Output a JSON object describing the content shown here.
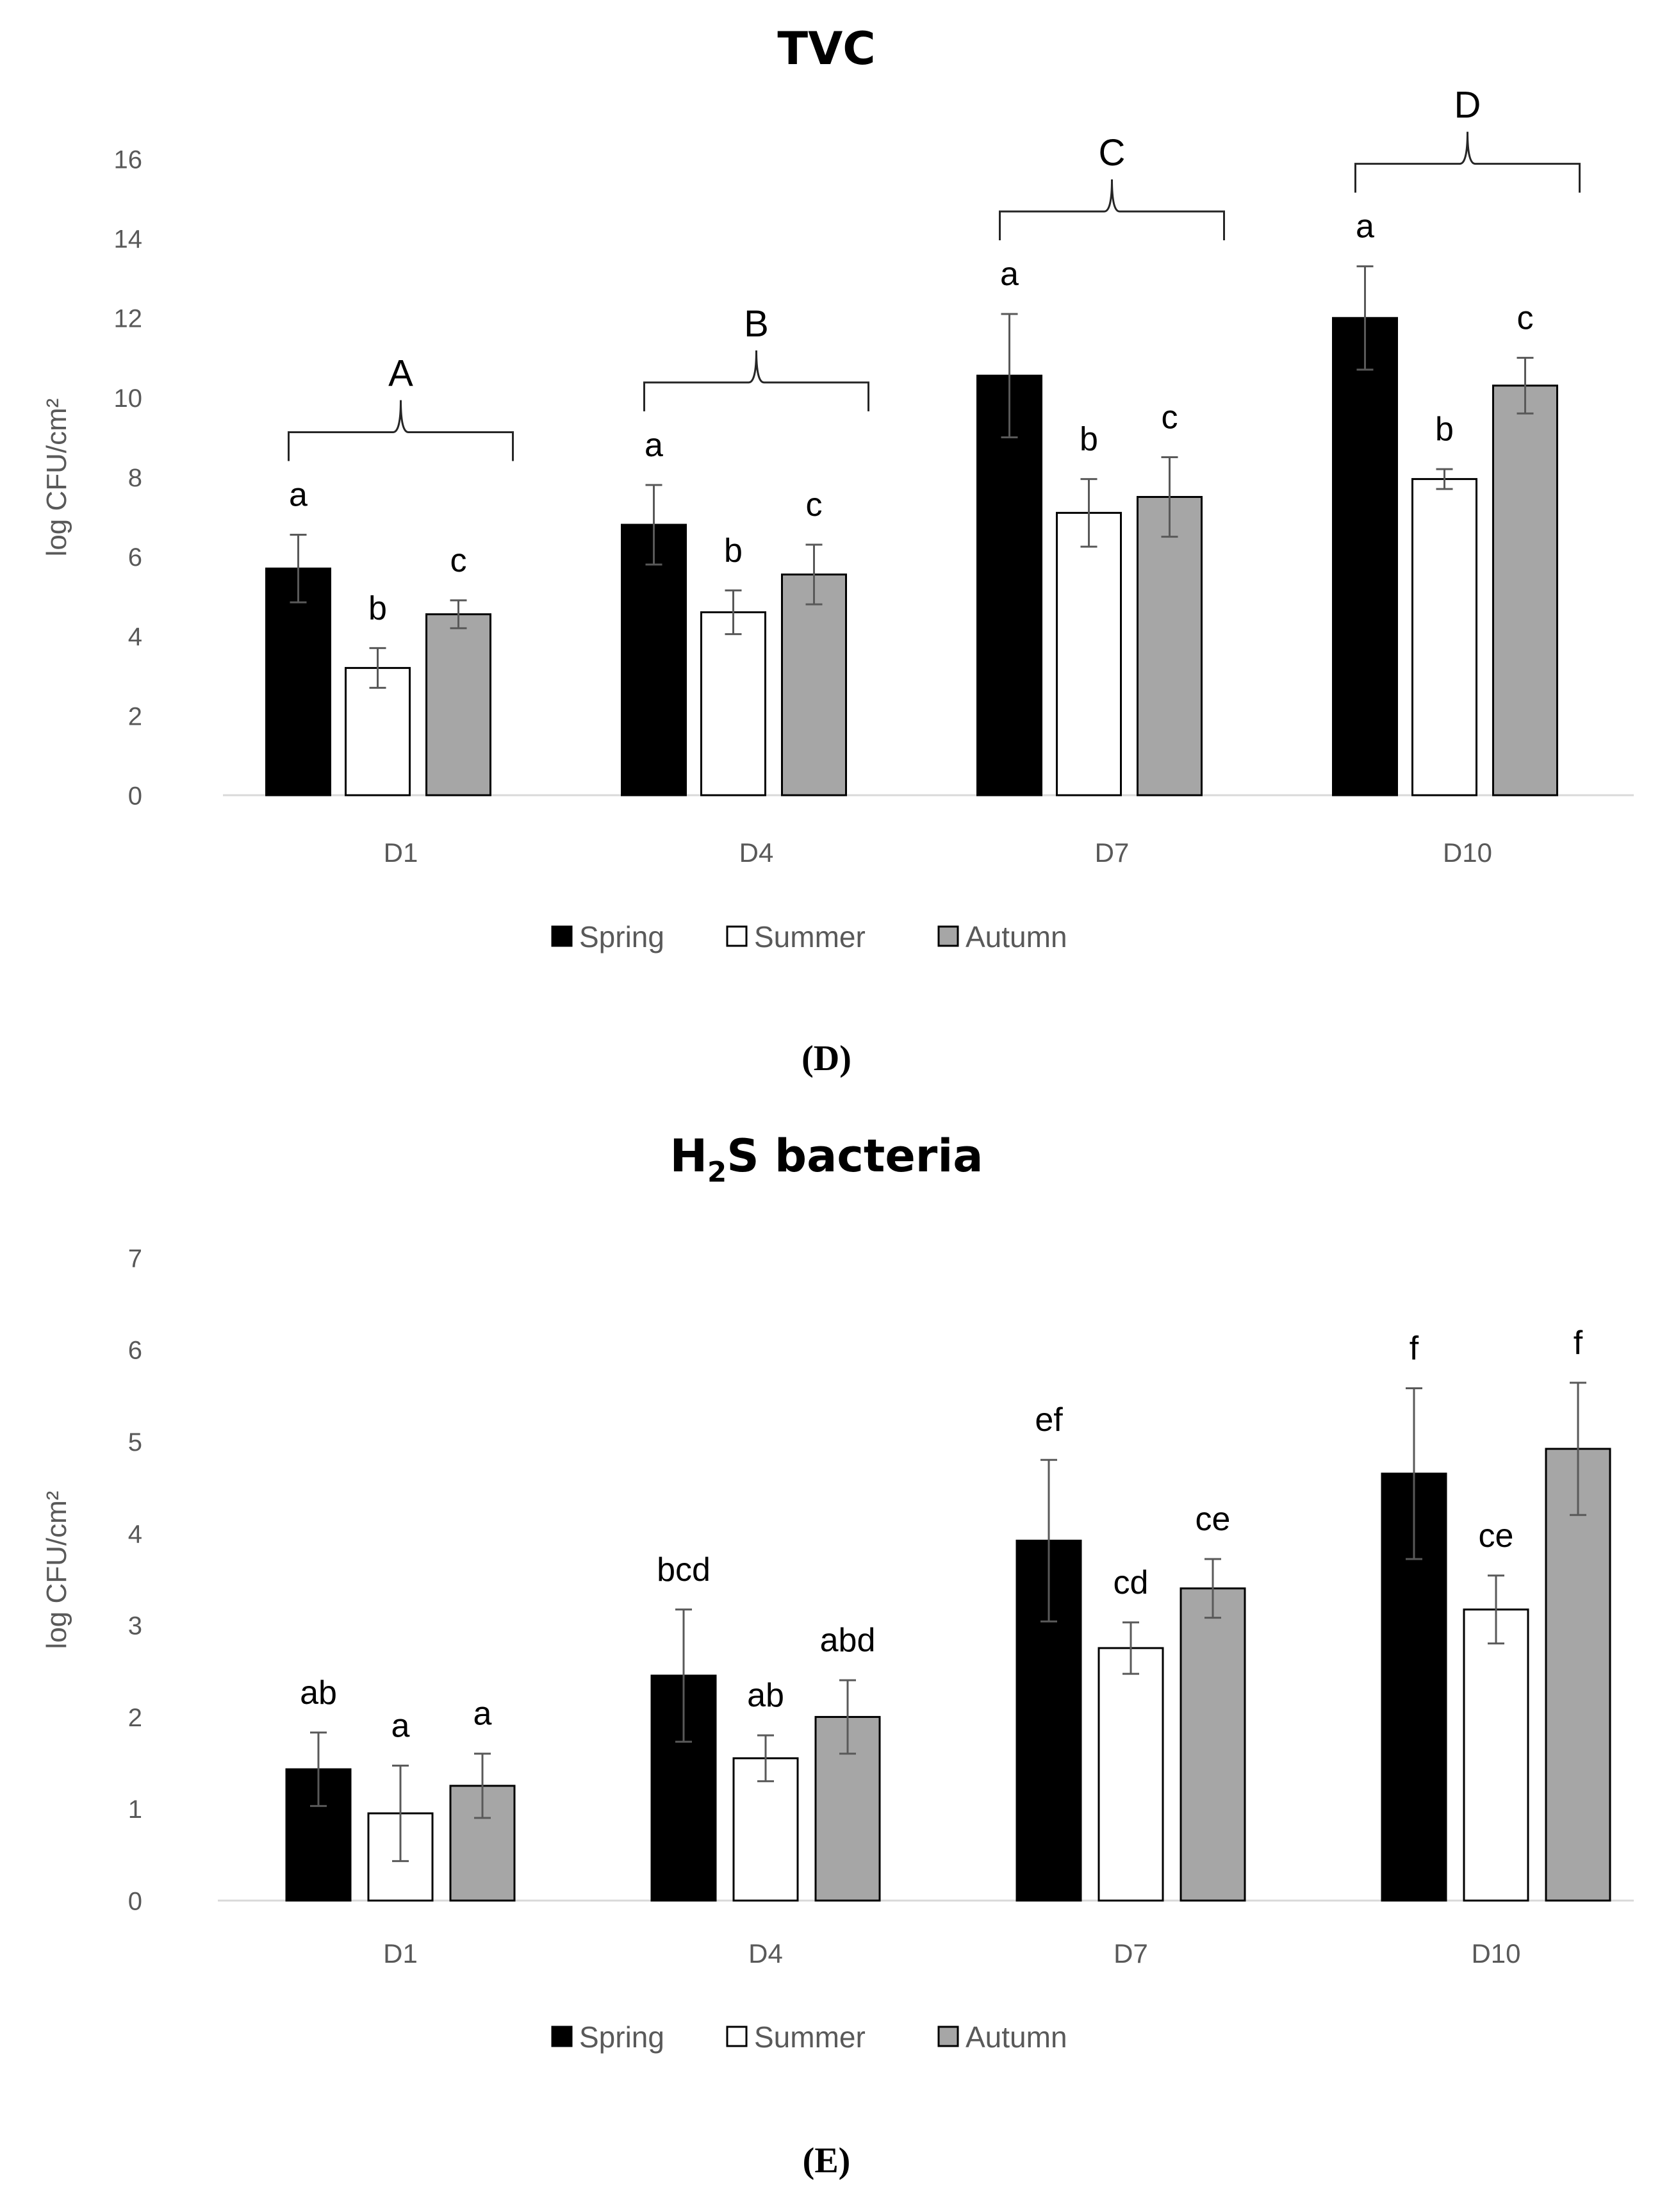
{
  "chart_data": [
    {
      "type": "bar",
      "title": "TVC",
      "xlabel": "",
      "ylabel": "log CFU/cm²",
      "ylim": [
        0,
        16
      ],
      "yticks": [
        0,
        2,
        4,
        6,
        8,
        10,
        12,
        14,
        16
      ],
      "categories": [
        "D1",
        "D4",
        "D7",
        "D10"
      ],
      "series": [
        {
          "name": "Spring",
          "color": "#000000",
          "values": [
            5.7,
            6.8,
            10.55,
            12.0
          ],
          "errors": [
            0.85,
            1.0,
            1.55,
            1.3
          ],
          "letters": [
            "a",
            "a",
            "a",
            "a"
          ]
        },
        {
          "name": "Summer",
          "color": "#ffffff",
          "values": [
            3.2,
            4.6,
            7.1,
            7.95
          ],
          "errors": [
            0.5,
            0.55,
            0.85,
            0.25
          ],
          "letters": [
            "b",
            "b",
            "b",
            "b"
          ]
        },
        {
          "name": "Autumn",
          "color": "#a6a6a6",
          "values": [
            4.55,
            5.55,
            7.5,
            10.3
          ],
          "errors": [
            0.35,
            0.75,
            1.0,
            0.7
          ],
          "letters": [
            "c",
            "c",
            "c",
            "c"
          ]
        }
      ],
      "group_letters": [
        "A",
        "B",
        "C",
        "D"
      ],
      "legend": "bottom",
      "panel": "(D)"
    },
    {
      "type": "bar",
      "title": "H2S bacteria",
      "title_parts": [
        "H",
        "2",
        "S bacteria"
      ],
      "xlabel": "",
      "ylabel": "log CFU/cm²",
      "ylim": [
        0,
        7
      ],
      "yticks": [
        0,
        1,
        2,
        3,
        4,
        5,
        6,
        7
      ],
      "categories": [
        "D1",
        "D4",
        "D7",
        "D10"
      ],
      "series": [
        {
          "name": "Spring",
          "color": "#000000",
          "values": [
            1.43,
            2.45,
            3.92,
            4.65
          ],
          "errors": [
            0.4,
            0.72,
            0.88,
            0.93
          ],
          "letters": [
            "ab",
            "bcd",
            "ef",
            "f"
          ]
        },
        {
          "name": "Summer",
          "color": "#ffffff",
          "values": [
            0.95,
            1.55,
            2.75,
            3.17
          ],
          "errors": [
            0.52,
            0.25,
            0.28,
            0.37
          ],
          "letters": [
            "a",
            "ab",
            "cd",
            "ce"
          ]
        },
        {
          "name": "Autumn",
          "color": "#a6a6a6",
          "values": [
            1.25,
            2.0,
            3.4,
            4.92
          ],
          "errors": [
            0.35,
            0.4,
            0.32,
            0.72
          ],
          "letters": [
            "a",
            "abd",
            "ce",
            "f"
          ]
        }
      ],
      "legend": "bottom",
      "panel": "(E)"
    }
  ]
}
